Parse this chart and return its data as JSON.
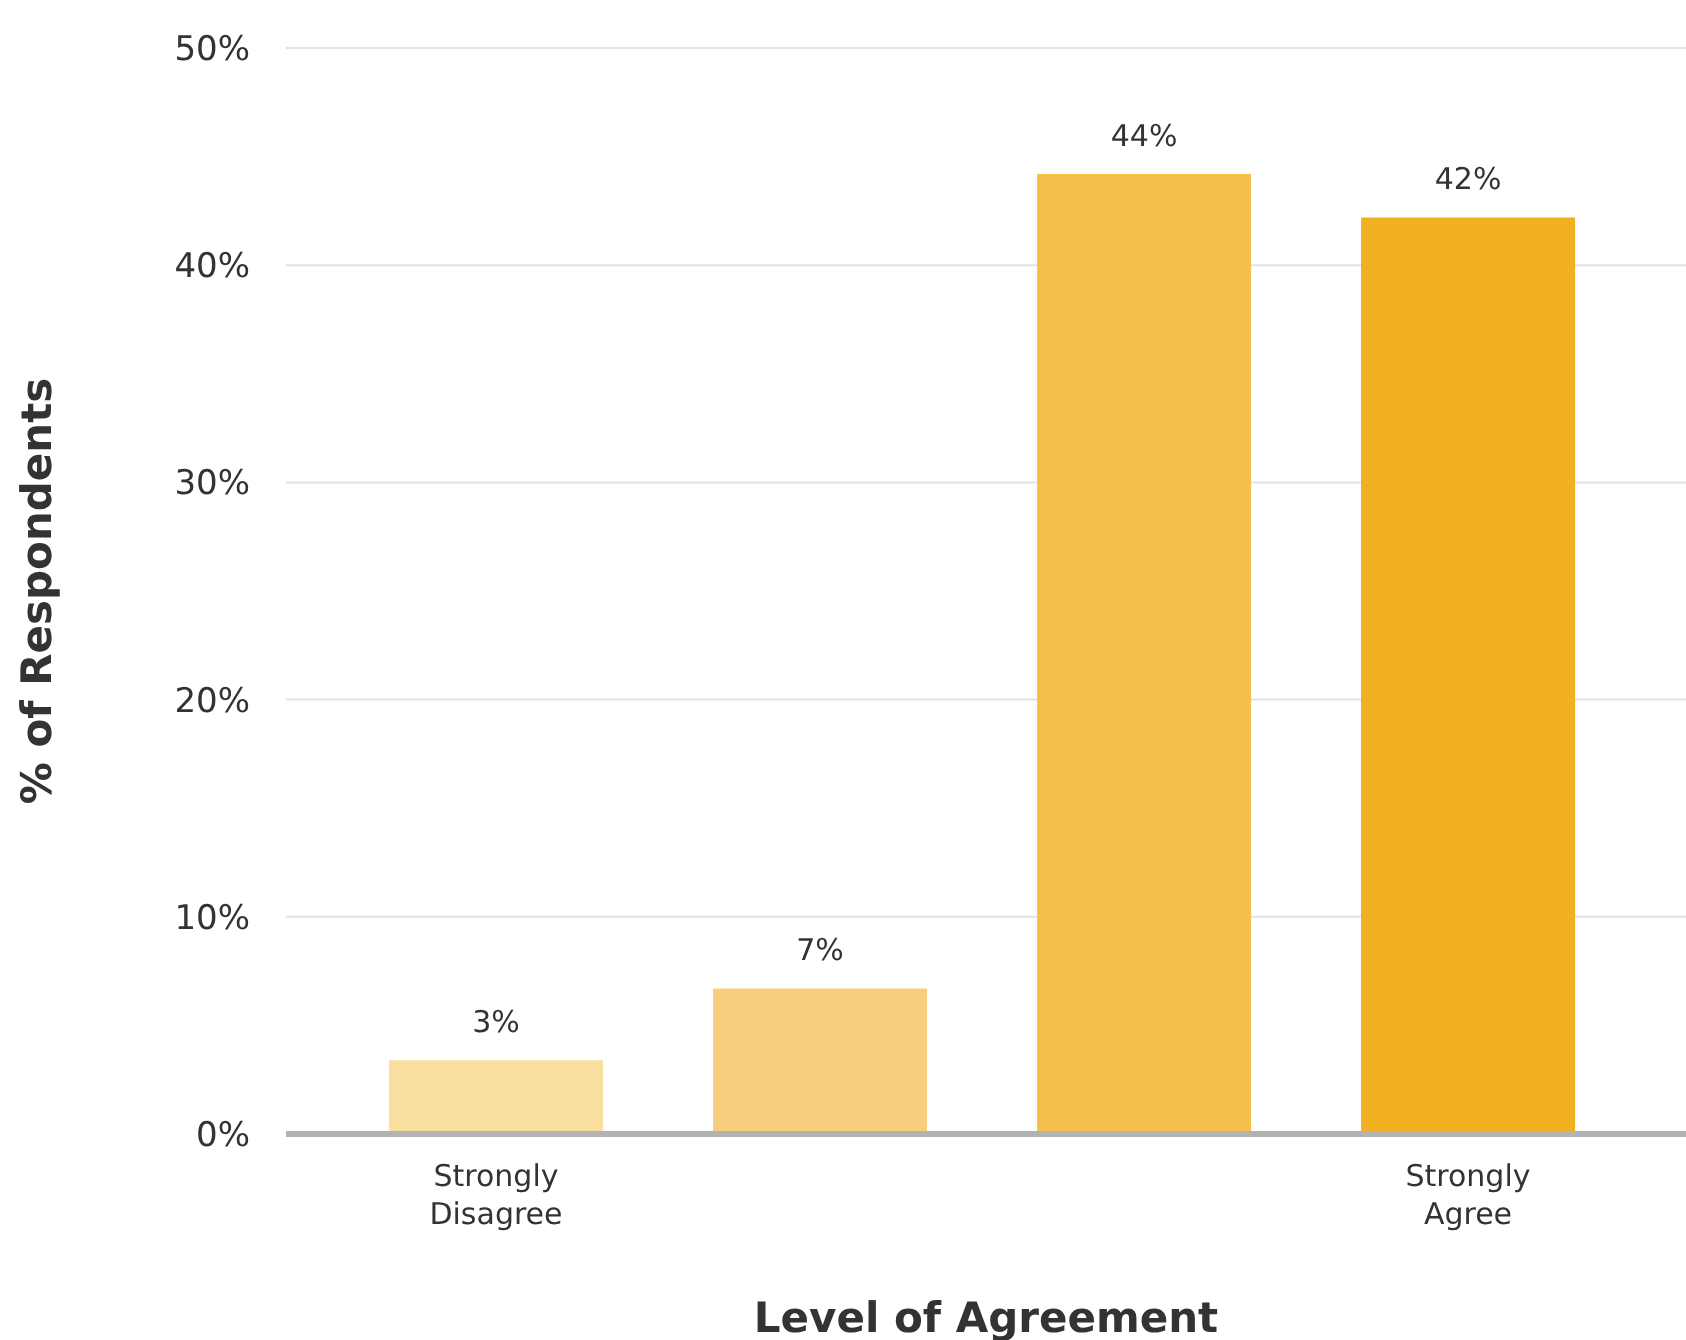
{
  "chart_data": {
    "type": "bar",
    "xlabel": "Level of Agreement",
    "ylabel": "% of Respondents",
    "categories": [
      "Strongly Disagree",
      null,
      null,
      "Strongly Agree"
    ],
    "values": [
      3.4,
      6.7,
      44.2,
      42.2
    ],
    "value_labels": [
      "3%",
      "7%",
      "44%",
      "42%"
    ],
    "colors": [
      "#f8dfa0",
      "#f7cf7c",
      "#f4c04c",
      "#f0b020"
    ],
    "ylim": [
      0,
      50
    ],
    "yticks": [
      {
        "value": 0,
        "label": "0%"
      },
      {
        "value": 10,
        "label": "10%"
      },
      {
        "value": 20,
        "label": "20%"
      },
      {
        "value": 30,
        "label": "30%"
      },
      {
        "value": 40,
        "label": "40%"
      },
      {
        "value": 50,
        "label": "50%"
      }
    ],
    "grid": "y",
    "legend": false
  }
}
